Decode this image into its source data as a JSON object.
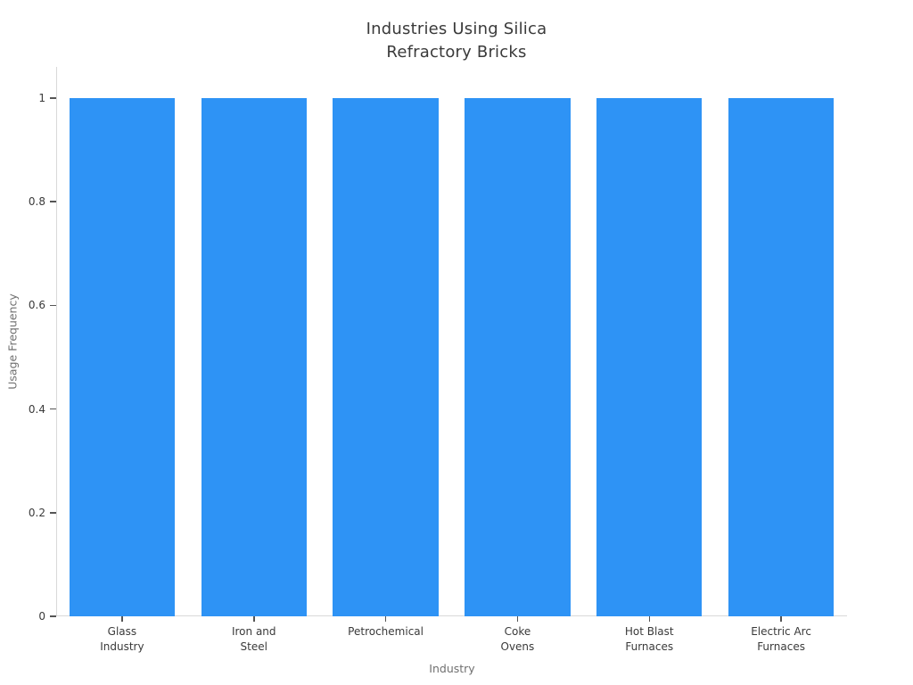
{
  "page": {
    "background": "#ffffff"
  },
  "chart_data": {
    "type": "bar",
    "title": "Industries Using Silica Refractory Bricks",
    "title_lines": [
      "Industries Using Silica",
      "Refractory Bricks"
    ],
    "xlabel": "Industry",
    "ylabel": "Usage Frequency",
    "categories": [
      "Glass Industry",
      "Iron and Steel",
      "Petrochemical",
      "Coke Ovens",
      "Hot Blast Furnaces",
      "Electric Arc Furnaces"
    ],
    "category_label_lines": [
      [
        "Glass",
        "Industry"
      ],
      [
        "Iron and",
        "Steel"
      ],
      [
        "Petrochemical"
      ],
      [
        "Coke",
        "Ovens"
      ],
      [
        "Hot Blast",
        "Furnaces"
      ],
      [
        "Electric Arc",
        "Furnaces"
      ]
    ],
    "values": [
      1,
      1,
      1,
      1,
      1,
      1
    ],
    "yticks": [
      0,
      0.2,
      0.4,
      0.6,
      0.8,
      1
    ],
    "ytick_labels": [
      "0",
      "0.2",
      "0.4",
      "0.6",
      "0.8",
      "1"
    ],
    "ylim": [
      0,
      1.06
    ],
    "grid": false,
    "legend": "none",
    "bar_color": "#2E93F5",
    "axis_color": "#d9d9d9",
    "tick_color": "#555555",
    "text_color": "#3a3a3a",
    "axis_label_color": "#707070"
  }
}
